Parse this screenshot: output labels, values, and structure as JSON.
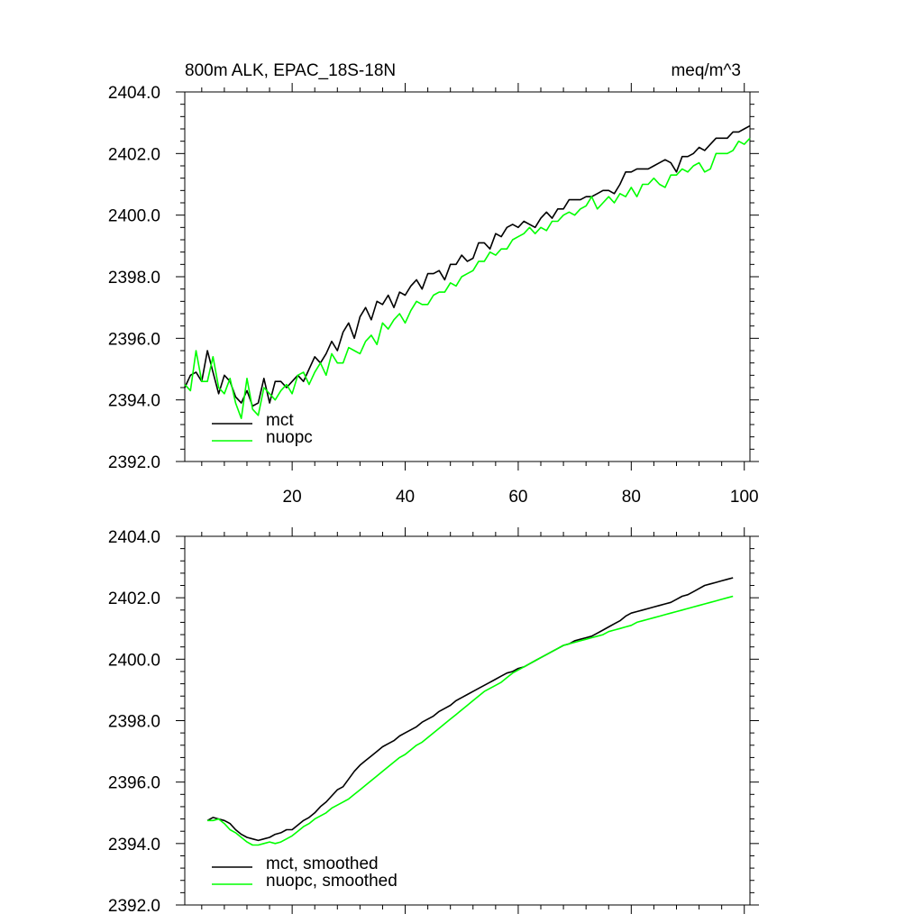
{
  "page": {
    "title_left": "800m ALK, EPAC_18S-18N",
    "title_right": "meq/m^3"
  },
  "chart_data": [
    {
      "type": "line",
      "xlim": [
        1,
        101
      ],
      "ylim": [
        2392,
        2404
      ],
      "xticks": [
        20,
        40,
        60,
        80,
        100
      ],
      "xtick_labels": [
        "20",
        "40",
        "60",
        "80",
        "100"
      ],
      "yticks": [
        2392,
        2394,
        2396,
        2398,
        2400,
        2402,
        2404
      ],
      "ytick_labels": [
        "2392.0",
        "2394.0",
        "2396.0",
        "2398.0",
        "2400.0",
        "2402.0",
        "2404.0"
      ],
      "legend_position": "bottom-left",
      "series": [
        {
          "name": "mct",
          "color": "#000000",
          "x": [
            1,
            2,
            3,
            4,
            5,
            6,
            7,
            8,
            9,
            10,
            11,
            12,
            13,
            14,
            15,
            16,
            17,
            18,
            19,
            20,
            21,
            22,
            23,
            24,
            25,
            26,
            27,
            28,
            29,
            30,
            31,
            32,
            33,
            34,
            35,
            36,
            37,
            38,
            39,
            40,
            41,
            42,
            43,
            44,
            45,
            46,
            47,
            48,
            49,
            50,
            51,
            52,
            53,
            54,
            55,
            56,
            57,
            58,
            59,
            60,
            61,
            62,
            63,
            64,
            65,
            66,
            67,
            68,
            69,
            70,
            71,
            72,
            73,
            74,
            75,
            76,
            77,
            78,
            79,
            80,
            81,
            82,
            83,
            84,
            85,
            86,
            87,
            88,
            89,
            90,
            91,
            92,
            93,
            94,
            95,
            96,
            97,
            98,
            99,
            100,
            101
          ],
          "values": [
            2394.4,
            2394.8,
            2394.9,
            2394.6,
            2395.6,
            2394.9,
            2394.2,
            2394.8,
            2394.6,
            2394.1,
            2393.9,
            2394.3,
            2393.8,
            2393.9,
            2394.7,
            2393.9,
            2394.6,
            2394.6,
            2394.4,
            2394.6,
            2394.8,
            2394.6,
            2395.0,
            2395.4,
            2395.2,
            2395.5,
            2395.9,
            2395.6,
            2396.2,
            2396.5,
            2396.0,
            2396.7,
            2397.0,
            2396.6,
            2397.2,
            2397.1,
            2397.4,
            2397.0,
            2397.5,
            2397.4,
            2397.7,
            2397.9,
            2397.6,
            2398.1,
            2398.1,
            2398.2,
            2397.9,
            2398.4,
            2398.4,
            2398.7,
            2398.5,
            2398.6,
            2399.1,
            2399.1,
            2398.9,
            2399.4,
            2399.3,
            2399.6,
            2399.7,
            2399.6,
            2399.8,
            2399.7,
            2399.6,
            2399.9,
            2400.1,
            2399.9,
            2400.2,
            2400.2,
            2400.5,
            2400.5,
            2400.5,
            2400.6,
            2400.6,
            2400.7,
            2400.8,
            2400.8,
            2400.7,
            2401.0,
            2401.4,
            2401.4,
            2401.5,
            2401.5,
            2401.5,
            2401.6,
            2401.7,
            2401.8,
            2401.7,
            2401.4,
            2401.9,
            2401.9,
            2402.0,
            2402.2,
            2402.1,
            2402.3,
            2402.5,
            2402.5,
            2402.5,
            2402.7,
            2402.7,
            2402.8,
            2402.9
          ]
        },
        {
          "name": "nuopc",
          "color": "#00ff00",
          "x": [
            1,
            2,
            3,
            4,
            5,
            6,
            7,
            8,
            9,
            10,
            11,
            12,
            13,
            14,
            15,
            16,
            17,
            18,
            19,
            20,
            21,
            22,
            23,
            24,
            25,
            26,
            27,
            28,
            29,
            30,
            31,
            32,
            33,
            34,
            35,
            36,
            37,
            38,
            39,
            40,
            41,
            42,
            43,
            44,
            45,
            46,
            47,
            48,
            49,
            50,
            51,
            52,
            53,
            54,
            55,
            56,
            57,
            58,
            59,
            60,
            61,
            62,
            63,
            64,
            65,
            66,
            67,
            68,
            69,
            70,
            71,
            72,
            73,
            74,
            75,
            76,
            77,
            78,
            79,
            80,
            81,
            82,
            83,
            84,
            85,
            86,
            87,
            88,
            89,
            90,
            91,
            92,
            93,
            94,
            95,
            96,
            97,
            98,
            99,
            100,
            101
          ],
          "values": [
            2394.5,
            2394.3,
            2395.6,
            2394.6,
            2394.6,
            2395.4,
            2394.4,
            2394.2,
            2394.7,
            2393.9,
            2393.4,
            2394.7,
            2393.7,
            2393.5,
            2394.4,
            2394.2,
            2394.0,
            2394.3,
            2394.5,
            2394.2,
            2394.8,
            2394.9,
            2394.5,
            2394.9,
            2395.2,
            2394.8,
            2395.5,
            2395.2,
            2395.2,
            2395.7,
            2395.6,
            2395.5,
            2395.9,
            2396.1,
            2395.8,
            2396.5,
            2396.3,
            2396.6,
            2396.8,
            2396.5,
            2396.9,
            2397.2,
            2397.1,
            2397.1,
            2397.4,
            2397.5,
            2397.5,
            2397.8,
            2397.7,
            2398.0,
            2398.1,
            2398.2,
            2398.5,
            2398.5,
            2398.8,
            2398.7,
            2398.9,
            2398.9,
            2399.2,
            2399.3,
            2399.4,
            2399.6,
            2399.4,
            2399.6,
            2399.5,
            2399.8,
            2399.8,
            2400.0,
            2400.1,
            2400.0,
            2400.2,
            2400.3,
            2400.6,
            2400.2,
            2400.4,
            2400.6,
            2400.4,
            2400.7,
            2400.6,
            2400.9,
            2400.6,
            2401.0,
            2401.0,
            2401.2,
            2401.0,
            2400.9,
            2401.3,
            2401.3,
            2401.5,
            2401.4,
            2401.6,
            2401.7,
            2401.4,
            2401.5,
            2402.0,
            2402.0,
            2402.0,
            2402.1,
            2402.4,
            2402.3,
            2402.5
          ]
        }
      ]
    },
    {
      "type": "line",
      "xlim": [
        1,
        101
      ],
      "ylim": [
        2392,
        2404
      ],
      "xticks": [
        20,
        40,
        60,
        80,
        100
      ],
      "yticks": [
        2392,
        2394,
        2396,
        2398,
        2400,
        2402,
        2404
      ],
      "ytick_labels": [
        "2392.0",
        "2394.0",
        "2396.0",
        "2398.0",
        "2400.0",
        "2402.0",
        "2404.0"
      ],
      "legend_position": "bottom-left",
      "series": [
        {
          "name": "mct, smoothed",
          "color": "#000000",
          "x": [
            5,
            6,
            7,
            8,
            9,
            10,
            11,
            12,
            13,
            14,
            15,
            16,
            17,
            18,
            19,
            20,
            21,
            22,
            23,
            24,
            25,
            26,
            27,
            28,
            29,
            30,
            31,
            32,
            33,
            34,
            35,
            36,
            37,
            38,
            39,
            40,
            41,
            42,
            43,
            44,
            45,
            46,
            47,
            48,
            49,
            50,
            51,
            52,
            53,
            54,
            55,
            56,
            57,
            58,
            59,
            60,
            61,
            62,
            63,
            64,
            65,
            66,
            67,
            68,
            69,
            70,
            71,
            72,
            73,
            74,
            75,
            76,
            77,
            78,
            79,
            80,
            81,
            82,
            83,
            84,
            85,
            86,
            87,
            88,
            89,
            90,
            91,
            92,
            93,
            94,
            95,
            96,
            97,
            98
          ],
          "values": [
            2394.75,
            2394.85,
            2394.8,
            2394.75,
            2394.65,
            2394.45,
            2394.3,
            2394.2,
            2394.15,
            2394.1,
            2394.15,
            2394.2,
            2394.3,
            2394.35,
            2394.45,
            2394.45,
            2394.6,
            2394.75,
            2394.85,
            2395.0,
            2395.2,
            2395.35,
            2395.55,
            2395.75,
            2395.85,
            2396.1,
            2396.35,
            2396.55,
            2396.7,
            2396.85,
            2397.0,
            2397.15,
            2397.25,
            2397.35,
            2397.5,
            2397.6,
            2397.7,
            2397.8,
            2397.95,
            2398.05,
            2398.15,
            2398.3,
            2398.4,
            2398.5,
            2398.65,
            2398.75,
            2398.85,
            2398.95,
            2399.05,
            2399.15,
            2399.25,
            2399.35,
            2399.45,
            2399.55,
            2399.6,
            2399.7,
            2399.75,
            2399.85,
            2399.95,
            2400.05,
            2400.15,
            2400.25,
            2400.35,
            2400.45,
            2400.5,
            2400.6,
            2400.65,
            2400.7,
            2400.75,
            2400.85,
            2400.95,
            2401.05,
            2401.15,
            2401.25,
            2401.4,
            2401.5,
            2401.55,
            2401.6,
            2401.65,
            2401.7,
            2401.75,
            2401.8,
            2401.85,
            2401.95,
            2402.05,
            2402.1,
            2402.2,
            2402.3,
            2402.4,
            2402.45,
            2402.5,
            2402.55,
            2402.6,
            2402.65
          ]
        },
        {
          "name": "nuopc, smoothed",
          "color": "#00ff00",
          "x": [
            5,
            6,
            7,
            8,
            9,
            10,
            11,
            12,
            13,
            14,
            15,
            16,
            17,
            18,
            19,
            20,
            21,
            22,
            23,
            24,
            25,
            26,
            27,
            28,
            29,
            30,
            31,
            32,
            33,
            34,
            35,
            36,
            37,
            38,
            39,
            40,
            41,
            42,
            43,
            44,
            45,
            46,
            47,
            48,
            49,
            50,
            51,
            52,
            53,
            54,
            55,
            56,
            57,
            58,
            59,
            60,
            61,
            62,
            63,
            64,
            65,
            66,
            67,
            68,
            69,
            70,
            71,
            72,
            73,
            74,
            75,
            76,
            77,
            78,
            79,
            80,
            81,
            82,
            83,
            84,
            85,
            86,
            87,
            88,
            89,
            90,
            91,
            92,
            93,
            94,
            95,
            96,
            97,
            98
          ],
          "values": [
            2394.75,
            2394.75,
            2394.8,
            2394.65,
            2394.45,
            2394.35,
            2394.2,
            2394.05,
            2393.95,
            2393.95,
            2394.0,
            2394.05,
            2394.0,
            2394.05,
            2394.15,
            2394.25,
            2394.4,
            2394.55,
            2394.65,
            2394.8,
            2394.9,
            2395.0,
            2395.15,
            2395.25,
            2395.35,
            2395.45,
            2395.6,
            2395.75,
            2395.9,
            2396.05,
            2396.2,
            2396.35,
            2396.5,
            2396.65,
            2396.8,
            2396.9,
            2397.05,
            2397.2,
            2397.3,
            2397.45,
            2397.6,
            2397.75,
            2397.9,
            2398.05,
            2398.2,
            2398.35,
            2398.5,
            2398.65,
            2398.8,
            2398.95,
            2399.05,
            2399.15,
            2399.25,
            2399.4,
            2399.55,
            2399.65,
            2399.75,
            2399.85,
            2399.95,
            2400.05,
            2400.15,
            2400.25,
            2400.35,
            2400.45,
            2400.5,
            2400.55,
            2400.6,
            2400.65,
            2400.7,
            2400.75,
            2400.8,
            2400.9,
            2400.95,
            2401.0,
            2401.05,
            2401.1,
            2401.2,
            2401.25,
            2401.3,
            2401.35,
            2401.4,
            2401.45,
            2401.5,
            2401.55,
            2401.6,
            2401.65,
            2401.7,
            2401.75,
            2401.8,
            2401.85,
            2401.9,
            2401.95,
            2402.0,
            2402.05
          ]
        }
      ]
    }
  ]
}
